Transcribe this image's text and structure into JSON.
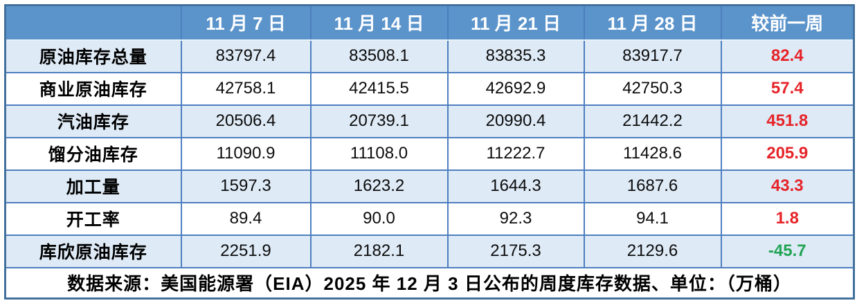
{
  "colors": {
    "header_bg": "#5b94cb",
    "band_bg": "#deeaf6",
    "border_inner": "#4d7ebf",
    "border_outer": "#41719c",
    "increase_red": "#e62429",
    "decrease_green": "#21a453"
  },
  "table": {
    "columns": [
      "",
      "11 月 7 日",
      "11 月 14 日",
      "11 月 21 日",
      "11 月 28 日",
      "较前一周"
    ],
    "rows": [
      {
        "label": "原油库存总量",
        "values": [
          "83797.4",
          "83508.1",
          "83835.3",
          "83917.7"
        ],
        "change": "82.4",
        "change_color": "#e62429"
      },
      {
        "label": "商业原油库存",
        "values": [
          "42758.1",
          "42415.5",
          "42692.9",
          "42750.3"
        ],
        "change": "57.4",
        "change_color": "#e62429"
      },
      {
        "label": "汽油库存",
        "values": [
          "20506.4",
          "20739.1",
          "20990.4",
          "21442.2"
        ],
        "change": "451.8",
        "change_color": "#e62429"
      },
      {
        "label": "馏分油库存",
        "values": [
          "11090.9",
          "11108.0",
          "11222.7",
          "11428.6"
        ],
        "change": "205.9",
        "change_color": "#e62429"
      },
      {
        "label": "加工量",
        "values": [
          "1597.3",
          "1623.2",
          "1644.3",
          "1687.6"
        ],
        "change": "43.3",
        "change_color": "#e62429"
      },
      {
        "label": "开工率",
        "values": [
          "89.4",
          "90.0",
          "92.3",
          "94.1"
        ],
        "change": "1.8",
        "change_color": "#e62429"
      },
      {
        "label": "库欣原油库存",
        "values": [
          "2251.9",
          "2182.1",
          "2175.3",
          "2129.6"
        ],
        "change": "-45.7",
        "change_color": "#21a453"
      }
    ],
    "footer_note": "数据来源：美国能源署（EIA）2025 年 12 月 3 日公布的周度库存数据、单位：（万桶）"
  },
  "chart_data": {
    "type": "table",
    "title": "",
    "columns": [
      "",
      "11 月 7 日",
      "11 月 14 日",
      "11 月 21 日",
      "11 月 28 日",
      "较前一周"
    ],
    "categories": [
      "原油库存总量",
      "商业原油库存",
      "汽油库存",
      "馏分油库存",
      "加工量",
      "开工率",
      "库欣原油库存"
    ],
    "series": [
      {
        "name": "11 月 7 日",
        "values": [
          83797.4,
          42758.1,
          20506.4,
          11090.9,
          1597.3,
          89.4,
          2251.9
        ]
      },
      {
        "name": "11 月 14 日",
        "values": [
          83508.1,
          42415.5,
          20739.1,
          11108.0,
          1623.2,
          90.0,
          2182.1
        ]
      },
      {
        "name": "11 月 21 日",
        "values": [
          83835.3,
          42692.9,
          20990.4,
          11222.7,
          1644.3,
          92.3,
          2175.3
        ]
      },
      {
        "name": "11 月 28 日",
        "values": [
          83917.7,
          42750.3,
          21442.2,
          11428.6,
          1687.6,
          94.1,
          2129.6
        ]
      },
      {
        "name": "较前一周",
        "values": [
          82.4,
          57.4,
          451.8,
          205.9,
          43.3,
          1.8,
          -45.7
        ]
      }
    ],
    "annotations": [
      "数据来源：美国能源署（EIA）2025 年 12 月 3 日公布的周度库存数据、单位：（万桶）"
    ],
    "unit": "万桶"
  }
}
